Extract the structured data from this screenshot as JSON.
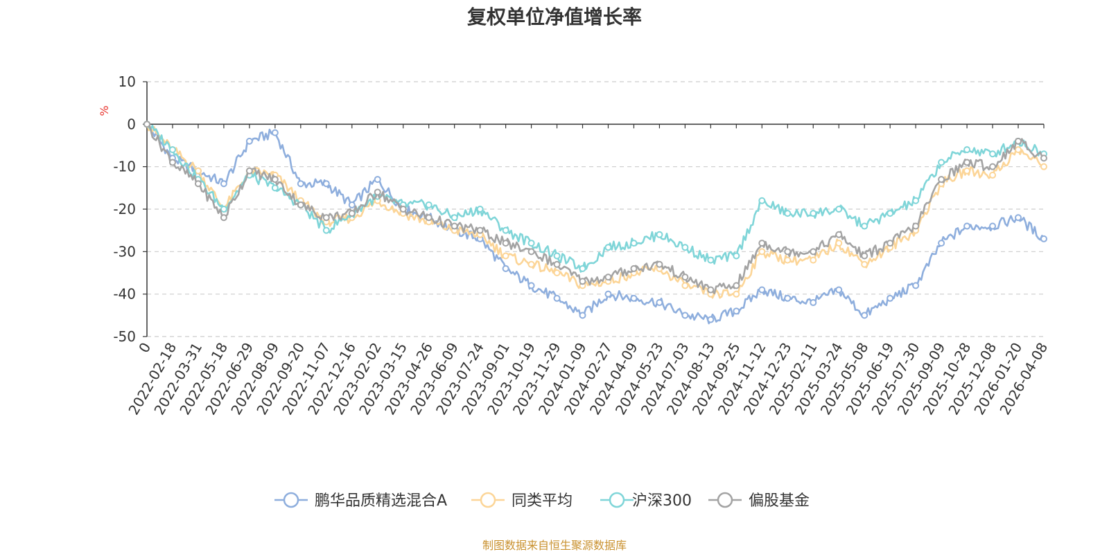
{
  "chart_data": {
    "type": "line",
    "title": "复权单位净值增长率",
    "ylabel": "%",
    "ylim": [
      -50,
      10
    ],
    "yticks": [
      10,
      0,
      -10,
      -20,
      -30,
      -40,
      -50
    ],
    "grid": true,
    "legend_position": "bottom",
    "source_note": "制图数据来自恒生聚源数据库",
    "categories": [
      "0",
      "2022-02-18",
      "2022-03-31",
      "2022-05-18",
      "2022-06-29",
      "2022-08-09",
      "2022-09-20",
      "2022-11-07",
      "2022-12-16",
      "2023-02-02",
      "2023-03-15",
      "2023-04-26",
      "2023-06-09",
      "2023-07-24",
      "2023-09-01",
      "2023-10-19",
      "2023-11-29",
      "2024-01-09",
      "2024-02-27",
      "2024-04-09",
      "2024-05-23",
      "2024-07-03",
      "2024-08-13",
      "2024-09-25",
      "2024-11-12",
      "2024-12-23",
      "2025-02-11",
      "2025-03-24",
      "2025-05-08",
      "2025-06-19",
      "2025-07-30",
      "2025-09-09",
      "2025-10-28",
      "2025-12-08",
      "2026-01-20",
      "2026-04-08"
    ],
    "series": [
      {
        "name": "鹏华品质精选混合A",
        "color": "#8eaedd",
        "values": [
          0,
          -8,
          -11,
          -14,
          -4,
          -2,
          -14,
          -14,
          -19,
          -13,
          -20,
          -22,
          -25,
          -27,
          -34,
          -38,
          -41,
          -45,
          -40,
          -41,
          -42,
          -45,
          -46,
          -44,
          -39,
          -41,
          -42,
          -39,
          -45,
          -41,
          -38,
          -28,
          -24,
          -24,
          -22,
          -27
        ]
      },
      {
        "name": "同类平均",
        "color": "#fcd597",
        "values": [
          0,
          -6,
          -11,
          -20,
          -11,
          -12,
          -18,
          -23,
          -22,
          -18,
          -21,
          -23,
          -25,
          -26,
          -31,
          -33,
          -35,
          -38,
          -37,
          -35,
          -34,
          -38,
          -40,
          -40,
          -30,
          -32,
          -32,
          -28,
          -33,
          -29,
          -25,
          -14,
          -11,
          -12,
          -6,
          -10
        ]
      },
      {
        "name": "沪深300",
        "color": "#7fd5d8",
        "values": [
          0,
          -6,
          -13,
          -20,
          -12,
          -15,
          -19,
          -25,
          -21,
          -17,
          -19,
          -19,
          -22,
          -20,
          -25,
          -28,
          -31,
          -34,
          -29,
          -28,
          -26,
          -29,
          -32,
          -31,
          -18,
          -21,
          -21,
          -20,
          -24,
          -21,
          -18,
          -9,
          -6,
          -7,
          -4,
          -7
        ]
      },
      {
        "name": "偏股基金",
        "color": "#a3a3a3",
        "values": [
          0,
          -9,
          -14,
          -22,
          -11,
          -13,
          -19,
          -22,
          -21,
          -16,
          -20,
          -22,
          -24,
          -25,
          -28,
          -30,
          -33,
          -37,
          -36,
          -34,
          -33,
          -36,
          -39,
          -38,
          -28,
          -30,
          -30,
          -26,
          -31,
          -28,
          -24,
          -13,
          -9,
          -10,
          -4,
          -8
        ]
      }
    ]
  }
}
